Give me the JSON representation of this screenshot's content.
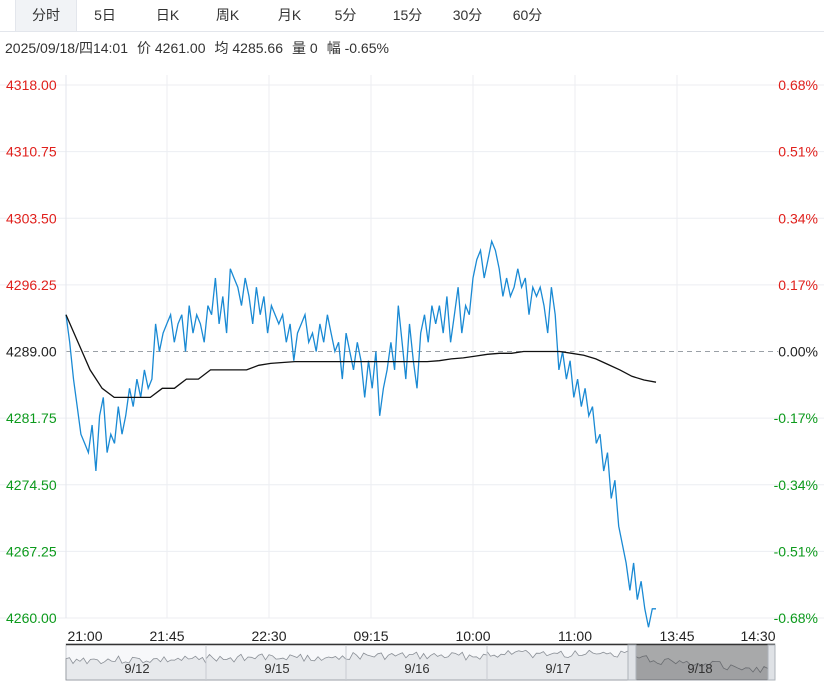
{
  "tabs": [
    {
      "label": "分时",
      "active": true
    },
    {
      "label": "5日",
      "active": false
    },
    {
      "label": "日K",
      "active": false
    },
    {
      "label": "周K",
      "active": false
    },
    {
      "label": "月K",
      "active": false
    },
    {
      "label": "5分",
      "active": false
    },
    {
      "label": "15分",
      "active": false
    },
    {
      "label": "30分",
      "active": false
    },
    {
      "label": "60分",
      "active": false
    }
  ],
  "info": {
    "datetime": "2025/09/18/四14:01",
    "price": "价 4261.00",
    "avg": "均 4285.66",
    "volume": "量 0",
    "change": "幅 -0.65%"
  },
  "colors": {
    "up": "#e0201c",
    "down": "#0c9a1c",
    "flat": "#222222",
    "price_line": "#1a8ad4",
    "avg_line": "#111111"
  },
  "chart_data": {
    "type": "line",
    "title": "",
    "ylim": [
      4260.0,
      4318.0
    ],
    "reference_price": 4289.0,
    "y_ticks": [
      "4318.00",
      "4310.75",
      "4303.50",
      "4296.25",
      "4289.00",
      "4281.75",
      "4274.50",
      "4267.25",
      "4260.00"
    ],
    "pct_ticks": [
      "0.68%",
      "0.51%",
      "0.34%",
      "0.17%",
      "0.00%",
      "-0.17%",
      "-0.34%",
      "-0.51%",
      "-0.68%"
    ],
    "x_ticks": [
      "21:00",
      "21:45",
      "22:30",
      "09:15",
      "10:00",
      "11:00",
      "13:45",
      "14:30"
    ],
    "series": [
      {
        "key": "price",
        "values": [
          4293,
          4290,
          4286,
          4283,
          4280,
          4279,
          4278,
          4281,
          4276,
          4282,
          4284,
          4278,
          4280,
          4279,
          4283,
          4280,
          4282,
          4285,
          4283,
          4286,
          4284,
          4287,
          4285,
          4286,
          4292,
          4289,
          4291,
          4292,
          4293,
          4290,
          4292,
          4293,
          4289,
          4294,
          4291,
          4293,
          4292,
          4290,
          4294,
          4293,
          4297,
          4292,
          4295,
          4291,
          4298,
          4297,
          4296,
          4294,
          4297,
          4295,
          4292,
          4296,
          4293,
          4295,
          4291,
          4294,
          4293,
          4292,
          4293,
          4290,
          4292,
          4288,
          4291,
          4292,
          4293,
          4290,
          4291,
          4289,
          4292,
          4290,
          4293,
          4291,
          4289,
          4290,
          4286,
          4291,
          4289,
          4287,
          4290,
          4288,
          4284,
          4288,
          4285,
          4289,
          4282,
          4285,
          4287,
          4290,
          4287,
          4294,
          4290,
          4286,
          4292,
          4288,
          4285,
          4291,
          4293,
          4290,
          4294,
          4292,
          4294,
          4291,
          4295,
          4290,
          4293,
          4296,
          4291,
          4294,
          4293,
          4297,
          4299,
          4300,
          4297,
          4299,
          4301,
          4300,
          4298,
          4295,
          4297,
          4295,
          4296,
          4298,
          4296,
          4297,
          4293,
          4296,
          4295,
          4296,
          4294,
          4291,
          4296,
          4293,
          4287,
          4289,
          4286,
          4288,
          4284,
          4286,
          4283,
          4285,
          4282,
          4283,
          4279,
          4280,
          4276,
          4278,
          4273,
          4275,
          4270,
          4268,
          4266,
          4263,
          4266,
          4262,
          4264,
          4261,
          4259,
          4261,
          4261
        ]
      },
      {
        "key": "avg",
        "values": [
          4293,
          4290,
          4287,
          4285,
          4284,
          4284,
          4284,
          4284,
          4285,
          4285,
          4286,
          4286,
          4287,
          4287,
          4287,
          4287,
          4287.5,
          4287.7,
          4287.8,
          4287.9,
          4287.9,
          4287.9,
          4287.9,
          4287.9,
          4287.9,
          4287.9,
          4287.9,
          4287.9,
          4287.9,
          4287.9,
          4287.9,
          4288,
          4288.2,
          4288.3,
          4288.5,
          4288.7,
          4288.8,
          4288.8,
          4289,
          4289,
          4289,
          4289,
          4288.8,
          4288.6,
          4288.2,
          4287.6,
          4287,
          4286.3,
          4285.9,
          4285.66
        ]
      }
    ]
  },
  "navigator": {
    "labels": [
      "9/12",
      "9/15",
      "9/16",
      "9/17",
      "9/18"
    ]
  }
}
